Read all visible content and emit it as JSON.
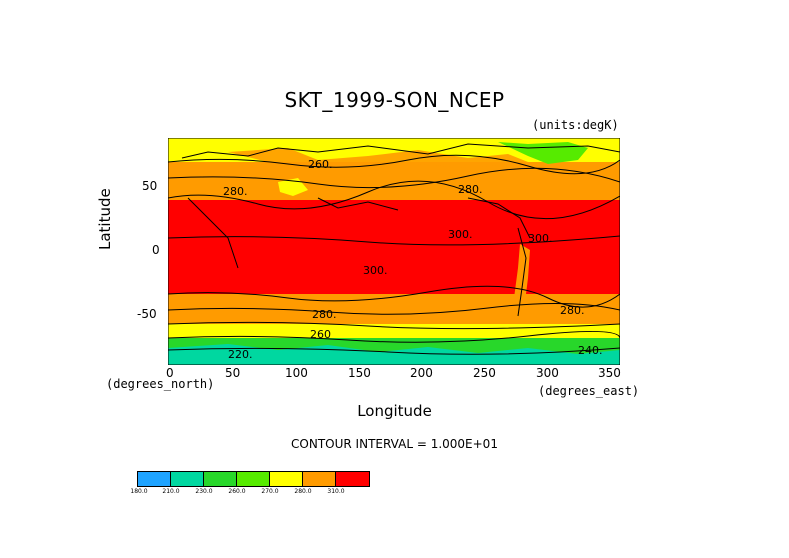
{
  "map": {
    "title": "SKT_1999-SON_NCEP",
    "units": "(units:degK)",
    "xaxis": {
      "label": "Longitude",
      "unit_left": "(degrees_north)",
      "unit_right": "(degrees_east)",
      "ticks": [
        "0",
        "50",
        "100",
        "150",
        "200",
        "250",
        "300",
        "350"
      ]
    },
    "yaxis": {
      "label": "Latitude",
      "ticks": [
        "50",
        "0",
        "-50"
      ]
    },
    "contour_interval": "CONTOUR INTERVAL = 1.000E+01",
    "contour_labels": [
      "260.",
      "280.",
      "280.",
      "300.",
      "300.",
      "300.",
      "280.",
      "280.",
      "260",
      "220.",
      "240."
    ],
    "colorbar": {
      "colors": [
        "#1ea3ff",
        "#00d7a0",
        "#28d72a",
        "#56eb00",
        "#ffff00",
        "#ff9b00",
        "#ff0000"
      ],
      "labels": [
        "180.0",
        "210.0",
        "230.0",
        "260.0",
        "270.0",
        "280.0",
        "310.0"
      ]
    }
  }
}
